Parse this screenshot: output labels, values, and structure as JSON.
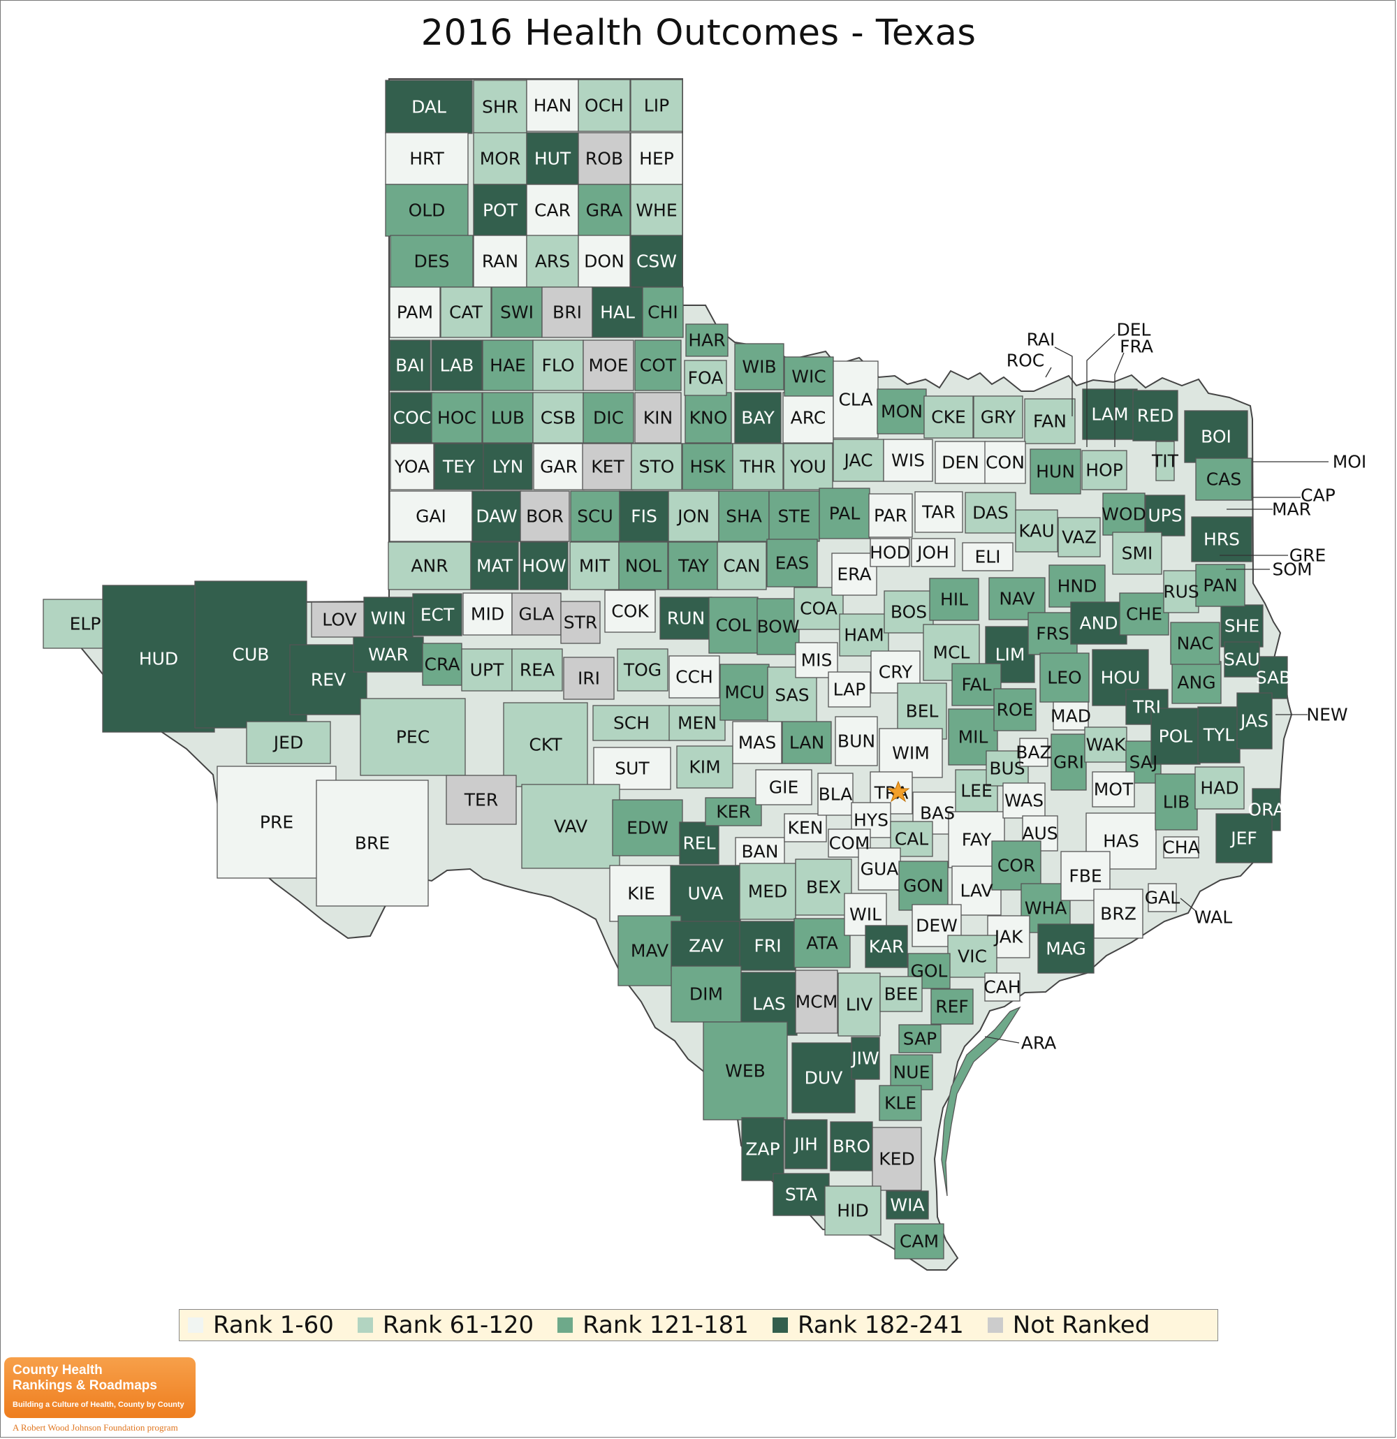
{
  "title": "2016 Health Outcomes - Texas",
  "colors": {
    "r1": "#f1f5f2",
    "r2": "#b2d4c1",
    "r3": "#6ea98a",
    "r4": "#335f4d",
    "nr": "#cccccc",
    "marker": "#f2a02b"
  },
  "legend": [
    {
      "label": "Rank 1-60",
      "cls": "r1"
    },
    {
      "label": "Rank 61-120",
      "cls": "r2"
    },
    {
      "label": "Rank 121-181",
      "cls": "r3"
    },
    {
      "label": "Rank 182-241",
      "cls": "r4"
    },
    {
      "label": "Not Ranked",
      "cls": "nr"
    }
  ],
  "branding": {
    "logo_line1": "County Health",
    "logo_line2": "Rankings & Roadmaps",
    "logo_tagline": "Building a Culture of Health, County by County",
    "sponsor": "A Robert Wood Johnson Foundation program"
  },
  "counties": [
    {
      "code": "DAL",
      "rank": "r4"
    },
    {
      "code": "SHR",
      "rank": "r2"
    },
    {
      "code": "HAN",
      "rank": "r1"
    },
    {
      "code": "OCH",
      "rank": "r2"
    },
    {
      "code": "LIP",
      "rank": "r2"
    },
    {
      "code": "HRT",
      "rank": "r1"
    },
    {
      "code": "MOR",
      "rank": "r2"
    },
    {
      "code": "HUT",
      "rank": "r4"
    },
    {
      "code": "ROB",
      "rank": "nr"
    },
    {
      "code": "HEP",
      "rank": "r1"
    },
    {
      "code": "OLD",
      "rank": "r3"
    },
    {
      "code": "POT",
      "rank": "r4"
    },
    {
      "code": "CAR",
      "rank": "r1"
    },
    {
      "code": "GRA",
      "rank": "r3"
    },
    {
      "code": "WHE",
      "rank": "r2"
    },
    {
      "code": "DES",
      "rank": "r3"
    },
    {
      "code": "RAN",
      "rank": "r1"
    },
    {
      "code": "ARS",
      "rank": "r2"
    },
    {
      "code": "DON",
      "rank": "r1"
    },
    {
      "code": "CSW",
      "rank": "r4"
    },
    {
      "code": "PAM",
      "rank": "r1"
    },
    {
      "code": "CAT",
      "rank": "r2"
    },
    {
      "code": "SWI",
      "rank": "r3"
    },
    {
      "code": "BRI",
      "rank": "nr"
    },
    {
      "code": "HAL",
      "rank": "r4"
    },
    {
      "code": "CHI",
      "rank": "r3"
    },
    {
      "code": "BAI",
      "rank": "r4"
    },
    {
      "code": "LAB",
      "rank": "r4"
    },
    {
      "code": "HAE",
      "rank": "r3"
    },
    {
      "code": "FLO",
      "rank": "r2"
    },
    {
      "code": "MOE",
      "rank": "nr"
    },
    {
      "code": "COT",
      "rank": "r3"
    },
    {
      "code": "COC",
      "rank": "r4"
    },
    {
      "code": "HOC",
      "rank": "r3"
    },
    {
      "code": "LUB",
      "rank": "r3"
    },
    {
      "code": "CSB",
      "rank": "r2"
    },
    {
      "code": "DIC",
      "rank": "r3"
    },
    {
      "code": "KIN",
      "rank": "nr"
    },
    {
      "code": "KNO",
      "rank": "r3"
    },
    {
      "code": "BAY",
      "rank": "r4"
    },
    {
      "code": "ARC",
      "rank": "r1"
    },
    {
      "code": "YOA",
      "rank": "r1"
    },
    {
      "code": "TEY",
      "rank": "r4"
    },
    {
      "code": "LYN",
      "rank": "r4"
    },
    {
      "code": "GAR",
      "rank": "r1"
    },
    {
      "code": "KET",
      "rank": "nr"
    },
    {
      "code": "STO",
      "rank": "r2"
    },
    {
      "code": "HSK",
      "rank": "r3"
    },
    {
      "code": "THR",
      "rank": "r2"
    },
    {
      "code": "YOU",
      "rank": "r2"
    },
    {
      "code": "GAI",
      "rank": "r1"
    },
    {
      "code": "DAW",
      "rank": "r4"
    },
    {
      "code": "BOR",
      "rank": "nr"
    },
    {
      "code": "SCU",
      "rank": "r3"
    },
    {
      "code": "FIS",
      "rank": "r4"
    },
    {
      "code": "JON",
      "rank": "r2"
    },
    {
      "code": "SHA",
      "rank": "r3"
    },
    {
      "code": "STE",
      "rank": "r3"
    },
    {
      "code": "PAL",
      "rank": "r3"
    },
    {
      "code": "ANR",
      "rank": "r2"
    },
    {
      "code": "MAT",
      "rank": "r4"
    },
    {
      "code": "HOW",
      "rank": "r4"
    },
    {
      "code": "MIT",
      "rank": "r2"
    },
    {
      "code": "NOL",
      "rank": "r3"
    },
    {
      "code": "TAY",
      "rank": "r3"
    },
    {
      "code": "CAN",
      "rank": "r2"
    },
    {
      "code": "EAS",
      "rank": "r3"
    },
    {
      "code": "HAR",
      "rank": "r3"
    },
    {
      "code": "FOA",
      "rank": "r2"
    },
    {
      "code": "WIB",
      "rank": "r3"
    },
    {
      "code": "WIC",
      "rank": "r3"
    },
    {
      "code": "CLA",
      "rank": "r1"
    },
    {
      "code": "MON",
      "rank": "r3"
    },
    {
      "code": "CKE",
      "rank": "r2"
    },
    {
      "code": "GRY",
      "rank": "r2"
    },
    {
      "code": "FAN",
      "rank": "r2"
    },
    {
      "code": "LAM",
      "rank": "r4"
    },
    {
      "code": "RED",
      "rank": "r4"
    },
    {
      "code": "BOI",
      "rank": "r4"
    },
    {
      "code": "JAC",
      "rank": "r2"
    },
    {
      "code": "WIS",
      "rank": "r1"
    },
    {
      "code": "DEN",
      "rank": "r1"
    },
    {
      "code": "CON",
      "rank": "r1"
    },
    {
      "code": "HUN",
      "rank": "r3"
    },
    {
      "code": "HOP",
      "rank": "r2"
    },
    {
      "code": "TIT",
      "rank": "r2"
    },
    {
      "code": "CAS",
      "rank": "r3"
    },
    {
      "code": "PAR",
      "rank": "r1"
    },
    {
      "code": "TAR",
      "rank": "r1"
    },
    {
      "code": "DAS",
      "rank": "r2"
    },
    {
      "code": "KAU",
      "rank": "r2"
    },
    {
      "code": "VAZ",
      "rank": "r2"
    },
    {
      "code": "WOD",
      "rank": "r3"
    },
    {
      "code": "UPS",
      "rank": "r4"
    },
    {
      "code": "HRS",
      "rank": "r4"
    },
    {
      "code": "ELP",
      "rank": "r2"
    },
    {
      "code": "HUD",
      "rank": "r4"
    },
    {
      "code": "CUB",
      "rank": "r4"
    },
    {
      "code": "LOV",
      "rank": "nr"
    },
    {
      "code": "WIN",
      "rank": "r4"
    },
    {
      "code": "ECT",
      "rank": "r4"
    },
    {
      "code": "MID",
      "rank": "r1"
    },
    {
      "code": "GLA",
      "rank": "nr"
    },
    {
      "code": "STR",
      "rank": "nr"
    },
    {
      "code": "COK",
      "rank": "r1"
    },
    {
      "code": "RUN",
      "rank": "r4"
    },
    {
      "code": "REV",
      "rank": "r4"
    },
    {
      "code": "WAR",
      "rank": "r4"
    },
    {
      "code": "CRA",
      "rank": "r3"
    },
    {
      "code": "UPT",
      "rank": "r2"
    },
    {
      "code": "REA",
      "rank": "r2"
    },
    {
      "code": "IRI",
      "rank": "nr"
    },
    {
      "code": "TOG",
      "rank": "r2"
    },
    {
      "code": "CCH",
      "rank": "r1"
    },
    {
      "code": "JED",
      "rank": "r2"
    },
    {
      "code": "PEC",
      "rank": "r2"
    },
    {
      "code": "CKT",
      "rank": "r2"
    },
    {
      "code": "SCH",
      "rank": "r2"
    },
    {
      "code": "MEN",
      "rank": "r2"
    },
    {
      "code": "SUT",
      "rank": "r1"
    },
    {
      "code": "KIM",
      "rank": "r2"
    },
    {
      "code": "TER",
      "rank": "nr"
    },
    {
      "code": "PRE",
      "rank": "r1"
    },
    {
      "code": "BRE",
      "rank": "r1"
    },
    {
      "code": "VAV",
      "rank": "r2"
    },
    {
      "code": "EDW",
      "rank": "r3"
    },
    {
      "code": "REL",
      "rank": "r4"
    },
    {
      "code": "KER",
      "rank": "r3"
    },
    {
      "code": "BAN",
      "rank": "r1"
    },
    {
      "code": "KEN",
      "rank": "r1"
    },
    {
      "code": "KIE",
      "rank": "r1"
    },
    {
      "code": "UVA",
      "rank": "r4"
    },
    {
      "code": "MED",
      "rank": "r2"
    },
    {
      "code": "BEX",
      "rank": "r2"
    },
    {
      "code": "MAV",
      "rank": "r3"
    },
    {
      "code": "ZAV",
      "rank": "r4"
    },
    {
      "code": "FRI",
      "rank": "r4"
    },
    {
      "code": "ATA",
      "rank": "r3"
    },
    {
      "code": "DIM",
      "rank": "r3"
    },
    {
      "code": "LAS",
      "rank": "r4"
    },
    {
      "code": "MCM",
      "rank": "nr"
    },
    {
      "code": "LIV",
      "rank": "r2"
    },
    {
      "code": "WEB",
      "rank": "r3"
    },
    {
      "code": "DUV",
      "rank": "r4"
    },
    {
      "code": "JIW",
      "rank": "r4"
    },
    {
      "code": "ZAP",
      "rank": "r4"
    },
    {
      "code": "JIH",
      "rank": "r4"
    },
    {
      "code": "BRO",
      "rank": "r4"
    },
    {
      "code": "KED",
      "rank": "nr"
    },
    {
      "code": "STA",
      "rank": "r4"
    },
    {
      "code": "HID",
      "rank": "r2"
    },
    {
      "code": "WIA",
      "rank": "r4"
    },
    {
      "code": "CAM",
      "rank": "r3"
    },
    {
      "code": "COL",
      "rank": "r3"
    },
    {
      "code": "BOW",
      "rank": "r3"
    },
    {
      "code": "COA",
      "rank": "r2"
    },
    {
      "code": "ERA",
      "rank": "r1"
    },
    {
      "code": "HOD",
      "rank": "r1"
    },
    {
      "code": "JOH",
      "rank": "r1"
    },
    {
      "code": "ELI",
      "rank": "r1"
    },
    {
      "code": "MCU",
      "rank": "r3"
    },
    {
      "code": "SAS",
      "rank": "r2"
    },
    {
      "code": "MIS",
      "rank": "r1"
    },
    {
      "code": "HAM",
      "rank": "r2"
    },
    {
      "code": "BOS",
      "rank": "r2"
    },
    {
      "code": "HIL",
      "rank": "r3"
    },
    {
      "code": "NAV",
      "rank": "r3"
    },
    {
      "code": "HND",
      "rank": "r3"
    },
    {
      "code": "MAS",
      "rank": "r1"
    },
    {
      "code": "LAN",
      "rank": "r3"
    },
    {
      "code": "LAP",
      "rank": "r1"
    },
    {
      "code": "CRY",
      "rank": "r1"
    },
    {
      "code": "MCL",
      "rank": "r2"
    },
    {
      "code": "LIM",
      "rank": "r4"
    },
    {
      "code": "FRS",
      "rank": "r3"
    },
    {
      "code": "AND",
      "rank": "r4"
    },
    {
      "code": "CHE",
      "rank": "r3"
    },
    {
      "code": "GIE",
      "rank": "r1"
    },
    {
      "code": "BUN",
      "rank": "r1"
    },
    {
      "code": "BEL",
      "rank": "r2"
    },
    {
      "code": "FAL",
      "rank": "r3"
    },
    {
      "code": "LEO",
      "rank": "r3"
    },
    {
      "code": "HOU",
      "rank": "r4"
    },
    {
      "code": "ANG",
      "rank": "r3"
    },
    {
      "code": "NAC",
      "rank": "r3"
    },
    {
      "code": "WIM",
      "rank": "r1"
    },
    {
      "code": "MIL",
      "rank": "r3"
    },
    {
      "code": "ROE",
      "rank": "r3"
    },
    {
      "code": "MAD",
      "rank": "r1"
    },
    {
      "code": "TRI",
      "rank": "r4"
    },
    {
      "code": "SHE",
      "rank": "r4"
    },
    {
      "code": "SAU",
      "rank": "r4"
    },
    {
      "code": "SAB",
      "rank": "r4"
    },
    {
      "code": "BLA",
      "rank": "r1"
    },
    {
      "code": "TRA",
      "rank": "r1"
    },
    {
      "code": "HYS",
      "rank": "r1"
    },
    {
      "code": "BAS",
      "rank": "r1"
    },
    {
      "code": "LEE",
      "rank": "r2"
    },
    {
      "code": "BUS",
      "rank": "r2"
    },
    {
      "code": "BAZ",
      "rank": "r1"
    },
    {
      "code": "GRI",
      "rank": "r3"
    },
    {
      "code": "WAK",
      "rank": "r2"
    },
    {
      "code": "SAJ",
      "rank": "r3"
    },
    {
      "code": "POL",
      "rank": "r4"
    },
    {
      "code": "TYL",
      "rank": "r4"
    },
    {
      "code": "JAS",
      "rank": "r4"
    },
    {
      "code": "COM",
      "rank": "r1"
    },
    {
      "code": "CAL",
      "rank": "r2"
    },
    {
      "code": "FAY",
      "rank": "r1"
    },
    {
      "code": "WAS",
      "rank": "r1"
    },
    {
      "code": "AUS",
      "rank": "r1"
    },
    {
      "code": "MOT",
      "rank": "r1"
    },
    {
      "code": "HAS",
      "rank": "r1"
    },
    {
      "code": "LIB",
      "rank": "r3"
    },
    {
      "code": "HAD",
      "rank": "r2"
    },
    {
      "code": "ORA",
      "rank": "r4"
    },
    {
      "code": "JEF",
      "rank": "r4"
    },
    {
      "code": "CHA",
      "rank": "r1"
    },
    {
      "code": "GUA",
      "rank": "r1"
    },
    {
      "code": "GON",
      "rank": "r3"
    },
    {
      "code": "LAV",
      "rank": "r1"
    },
    {
      "code": "COR",
      "rank": "r3"
    },
    {
      "code": "WHA",
      "rank": "r3"
    },
    {
      "code": "FBE",
      "rank": "r1"
    },
    {
      "code": "BRZ",
      "rank": "r1"
    },
    {
      "code": "GAL",
      "rank": "r1"
    },
    {
      "code": "WIL",
      "rank": "r1"
    },
    {
      "code": "KAR",
      "rank": "r4"
    },
    {
      "code": "DEW",
      "rank": "r1"
    },
    {
      "code": "JAK",
      "rank": "r1"
    },
    {
      "code": "MAG",
      "rank": "r4"
    },
    {
      "code": "VIC",
      "rank": "r2"
    },
    {
      "code": "GOL",
      "rank": "r3"
    },
    {
      "code": "BEE",
      "rank": "r2"
    },
    {
      "code": "CAH",
      "rank": "r1"
    },
    {
      "code": "REF",
      "rank": "r3"
    },
    {
      "code": "SAP",
      "rank": "r3"
    },
    {
      "code": "NUE",
      "rank": "r3"
    },
    {
      "code": "KLE",
      "rank": "r3"
    },
    {
      "code": "RUS",
      "rank": "r2"
    },
    {
      "code": "PAN",
      "rank": "r3"
    },
    {
      "code": "SMI",
      "rank": "r2"
    },
    {
      "code": "ARA",
      "rank": "r3"
    }
  ],
  "callouts": [
    "RAI",
    "ROC",
    "DEL",
    "FRA",
    "MOI",
    "CAP",
    "MAR",
    "GRE",
    "SOM",
    "NEW",
    "WAL",
    "ARA"
  ]
}
